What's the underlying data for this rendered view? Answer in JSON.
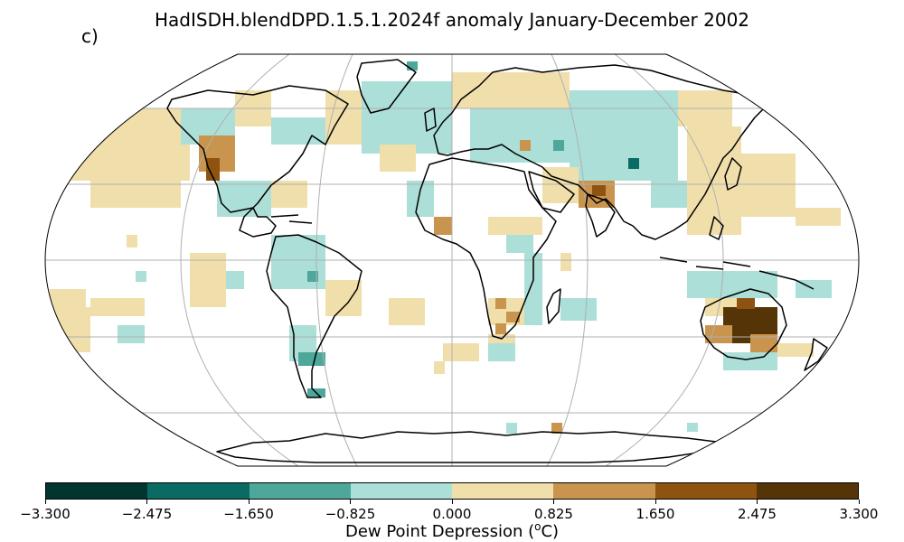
{
  "title": "HadISDH.blendDPD.1.5.1.2024f anomaly January-December 2002",
  "panel_label": "c)",
  "colorbar": {
    "label_main": "Dew Point Depression (",
    "label_sup": "o",
    "label_unit": "C)",
    "ticks": [
      "−3.300",
      "−2.475",
      "−1.650",
      "−0.825",
      "0.000",
      "0.825",
      "1.650",
      "2.475",
      "3.300"
    ],
    "colors": [
      "#013530",
      "#0a6b62",
      "#4ea79b",
      "#abdfd7",
      "#f1dfab",
      "#c9944d",
      "#8d530f",
      "#553407"
    ]
  },
  "map": {
    "projection": "robinson",
    "land_color": "#ffffff",
    "coast_color": "#000000",
    "grid_color": "#b0b0b0"
  }
}
